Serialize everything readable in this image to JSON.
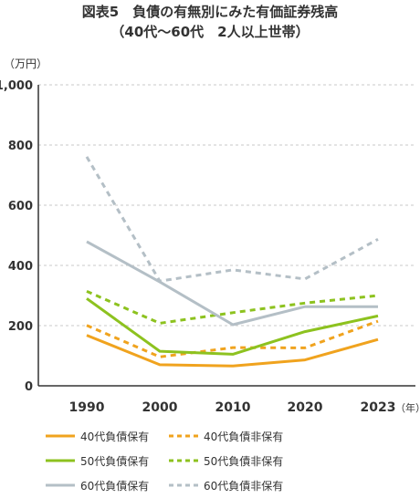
{
  "title_line1": "図表5　負債の有無別にみた有価証券残高",
  "title_line2": "（40代～60代　2人以上世帯）",
  "chart_data": {
    "type": "line",
    "ylabel": "（万円）",
    "xunit": "（年）",
    "x": [
      "1990",
      "2000",
      "2010",
      "2020",
      "2023"
    ],
    "ylim": [
      0,
      1000
    ],
    "yticks": [
      0,
      200,
      400,
      600,
      800,
      1000
    ],
    "ytick_labels": [
      "0",
      "200",
      "400",
      "600",
      "800",
      "1,000"
    ],
    "grid": true,
    "legend_position": "bottom",
    "series": [
      {
        "name": "40代負債保有",
        "color": "#F0A31E",
        "dash": false,
        "values": [
          168,
          70,
          66,
          86,
          154
        ]
      },
      {
        "name": "40代負債非保有",
        "color": "#F0A31E",
        "dash": true,
        "values": [
          201,
          96,
          127,
          126,
          215
        ]
      },
      {
        "name": "50代負債保有",
        "color": "#8DC21F",
        "dash": false,
        "values": [
          290,
          115,
          105,
          180,
          232
        ]
      },
      {
        "name": "50代負債非保有",
        "color": "#8DC21F",
        "dash": true,
        "values": [
          314,
          208,
          243,
          275,
          300
        ]
      },
      {
        "name": "60代負債保有",
        "color": "#B4BFC6",
        "dash": false,
        "values": [
          479,
          345,
          203,
          263,
          263
        ]
      },
      {
        "name": "60代負債非保有",
        "color": "#B4BFC6",
        "dash": true,
        "values": [
          761,
          348,
          385,
          355,
          487
        ]
      }
    ]
  }
}
